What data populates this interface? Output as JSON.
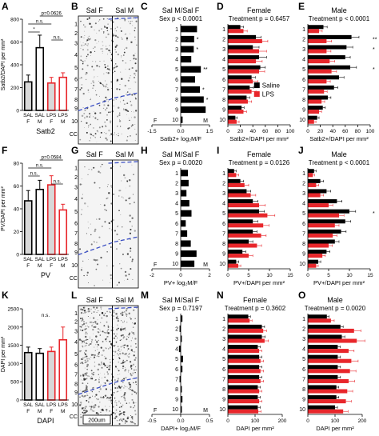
{
  "colors": {
    "saline": "#000000",
    "lps": "#e8262b",
    "f_bar": "#d8d8d8",
    "m_bar": "#ffffff"
  },
  "panel_letters": {
    "A": "A",
    "B": "B",
    "C": "C",
    "D": "D",
    "E": "E",
    "F": "F",
    "G": "G",
    "H": "H",
    "I": "I",
    "J": "J",
    "K": "K",
    "L": "L",
    "M": "M",
    "N": "N",
    "O": "O"
  },
  "legend": {
    "saline": "Saline",
    "lps": "LPS"
  },
  "images": [
    {
      "id": "B",
      "label_f": "Sal F",
      "label_m": "Sal M",
      "layers": [
        "1",
        "2",
        "3",
        "4",
        "5",
        "6",
        "7",
        "8",
        "9",
        "10",
        "CC"
      ]
    },
    {
      "id": "G",
      "label_f": "Sal F",
      "label_m": "Sal M",
      "layers": [
        "1",
        "2",
        "3",
        "4",
        "5",
        "6",
        "7",
        "8",
        "9",
        "10",
        "CC"
      ]
    },
    {
      "id": "L",
      "label_f": "Sal F",
      "label_m": "Sal M",
      "layers": [
        "1",
        "2",
        "3",
        "4",
        "5",
        "6",
        "7",
        "8",
        "9",
        "10",
        "CC"
      ],
      "scale": "200um"
    }
  ],
  "chart_data": [
    {
      "id": "A",
      "type": "bar",
      "ylabel": "Satb2/DAPI per mm²",
      "ylim": [
        0,
        800
      ],
      "yticks": [
        0,
        200,
        400,
        600,
        800
      ],
      "categories": [
        [
          "SAL",
          "F"
        ],
        [
          "SAL",
          "M"
        ],
        [
          "LPS",
          "F"
        ],
        [
          "LPS",
          "M"
        ]
      ],
      "values": [
        250,
        550,
        240,
        290
      ],
      "errors": [
        60,
        110,
        50,
        40
      ],
      "group_label": "Satb2",
      "sig": [
        {
          "text": "p=0.0626",
          "from": 1,
          "to": 3,
          "level": 0
        },
        {
          "text": "n.s.",
          "from": 0,
          "to": 2,
          "level": 1
        },
        {
          "text": "*",
          "from": 0,
          "to": 1,
          "level": 2
        },
        {
          "text": "n.s.",
          "from": 2,
          "to": 3,
          "level": 3
        }
      ]
    },
    {
      "id": "F",
      "type": "bar",
      "ylabel": "PV/DAPI per mm²",
      "ylim": [
        0,
        80
      ],
      "yticks": [
        0,
        20,
        40,
        60,
        80
      ],
      "categories": [
        [
          "SAL",
          "F"
        ],
        [
          "SAL",
          "M"
        ],
        [
          "LPS",
          "F"
        ],
        [
          "LPS",
          "M"
        ]
      ],
      "values": [
        47,
        57,
        61,
        39
      ],
      "errors": [
        9,
        8,
        8,
        5
      ],
      "group_label": "PV",
      "sig": [
        {
          "text": "p=0.0584",
          "from": 1,
          "to": 3,
          "level": 0
        },
        {
          "text": "n.s.",
          "from": 0,
          "to": 2,
          "level": 1
        },
        {
          "text": "n.s.",
          "from": 0,
          "to": 1,
          "level": 2
        },
        {
          "text": "n.s.",
          "from": 2,
          "to": 3,
          "level": 3
        }
      ]
    },
    {
      "id": "K",
      "type": "bar",
      "ylabel": "DAPI per mm²",
      "ylim": [
        0,
        2500
      ],
      "yticks": [
        0,
        500,
        1000,
        1500,
        2000,
        2500
      ],
      "categories": [
        [
          "SAL",
          "F"
        ],
        [
          "SAL",
          "M"
        ],
        [
          "LPS",
          "F"
        ],
        [
          "LPS",
          "M"
        ]
      ],
      "values": [
        1300,
        1280,
        1330,
        1650
      ],
      "errors": [
        150,
        130,
        120,
        350
      ],
      "group_label": "DAPI",
      "sig": [
        {
          "text": "n.s.",
          "from": 0,
          "to": 3,
          "level": -1
        }
      ]
    },
    {
      "id": "C",
      "type": "bar",
      "title": "Sal M/Sal F",
      "subtitle": "Sex p < 0.0001",
      "xlabel": "Satb2+ log₂M/F",
      "xlim": [
        -1.5,
        1.5
      ],
      "xticks": [
        "-1.5",
        "0.0",
        "1.5"
      ],
      "ends": [
        "F",
        "M"
      ],
      "categories": [
        "1",
        "2",
        "3",
        "4",
        "5",
        "6",
        "7",
        "8",
        "9",
        "10"
      ],
      "values": [
        0.85,
        0.7,
        0.68,
        0.55,
        1.05,
        0.75,
        1.0,
        1.2,
        1.3,
        0.1
      ],
      "stars": [
        "",
        "*",
        "*",
        "",
        "**",
        "",
        "*",
        "*",
        "",
        ""
      ]
    },
    {
      "id": "H",
      "type": "bar",
      "title": "Sal M/Sal F",
      "subtitle": "Sex p = 0.0020",
      "xlabel": "PV+ log₂M/F",
      "xlim": [
        -2,
        2
      ],
      "xticks": [
        "-2",
        "0",
        "2"
      ],
      "ends": [
        "F",
        "M"
      ],
      "categories": [
        "1",
        "2",
        "3",
        "4",
        "5",
        "6",
        "7",
        "8",
        "9",
        "10"
      ],
      "values": [
        0.5,
        0.55,
        0.4,
        0.6,
        0.75,
        0.35,
        0.45,
        0.7,
        1.1,
        0.95
      ],
      "stars": []
    },
    {
      "id": "M",
      "type": "bar",
      "title": "Sal M/Sal F",
      "subtitle": "Sex p = 0.7197",
      "xlabel": "DAPI+ log₂M/F",
      "xlim": [
        -0.5,
        0.5
      ],
      "xticks": [
        "-0.5",
        "0.0",
        "0.5"
      ],
      "ends": [
        "F",
        "M"
      ],
      "categories": [
        "1",
        "2",
        "3",
        "4",
        "5",
        "6",
        "7",
        "8",
        "9",
        "10"
      ],
      "values": [
        0.03,
        -0.02,
        0.02,
        -0.03,
        0.04,
        0.03,
        -0.02,
        0.02,
        0.03,
        0.02
      ],
      "stars": []
    },
    {
      "id": "D",
      "type": "bar",
      "title": "Female",
      "subtitle": "Treatment p = 0.6457",
      "xlabel": "Satb2+/DAPI per mm²",
      "xlim": [
        0,
        100
      ],
      "xticks": [
        "0",
        "20",
        "40",
        "60",
        "80",
        "100"
      ],
      "categories": [
        "1",
        "2",
        "3",
        "4",
        "5",
        "6",
        "7",
        "8",
        "9",
        "10"
      ],
      "series": [
        {
          "name": "Saline",
          "values": [
            20,
            45,
            40,
            50,
            52,
            38,
            35,
            30,
            22,
            12
          ],
          "errors": [
            5,
            8,
            10,
            12,
            8,
            6,
            6,
            5,
            4,
            3
          ]
        },
        {
          "name": "LPS",
          "values": [
            25,
            55,
            50,
            45,
            50,
            40,
            38,
            32,
            25,
            14
          ],
          "errors": [
            6,
            9,
            12,
            10,
            9,
            8,
            7,
            6,
            5,
            4
          ]
        }
      ],
      "stars": [],
      "legend": true
    },
    {
      "id": "E",
      "type": "bar",
      "title": "Male",
      "subtitle": "Treatment p < 0.0001",
      "xlabel": "Satb2+/DAPI per mm²",
      "xlim": [
        0,
        100
      ],
      "xticks": [
        "0",
        "20",
        "40",
        "60",
        "80",
        "100"
      ],
      "categories": [
        "1",
        "2",
        "3",
        "4",
        "5",
        "6",
        "7",
        "8",
        "9",
        "10"
      ],
      "series": [
        {
          "name": "Saline",
          "values": [
            25,
            70,
            62,
            60,
            68,
            50,
            42,
            32,
            24,
            15
          ],
          "errors": [
            6,
            12,
            10,
            8,
            10,
            8,
            6,
            5,
            4,
            3
          ]
        },
        {
          "name": "LPS",
          "values": [
            18,
            30,
            30,
            35,
            38,
            30,
            26,
            22,
            18,
            10
          ],
          "errors": [
            5,
            8,
            7,
            8,
            8,
            6,
            5,
            5,
            4,
            3
          ]
        }
      ],
      "stars": [
        "",
        "**",
        "*",
        "",
        "*",
        "",
        "",
        "",
        "",
        ""
      ]
    },
    {
      "id": "I",
      "type": "bar",
      "title": "Female",
      "subtitle": "Treatment p = 0.0126",
      "xlabel": "PV+/DAPI per mm²",
      "xlim": [
        0,
        15
      ],
      "xticks": [
        "0",
        "5",
        "10",
        "15"
      ],
      "categories": [
        "1",
        "2",
        "3",
        "4",
        "5",
        "6",
        "7",
        "8",
        "9",
        "10"
      ],
      "series": [
        {
          "name": "Saline",
          "values": [
            1.5,
            3,
            4.5,
            6,
            7.5,
            6,
            6,
            5,
            3.5,
            2
          ],
          "errors": [
            0.5,
            0.8,
            1,
            1.2,
            1.3,
            1.2,
            1,
            1,
            0.8,
            0.6
          ]
        },
        {
          "name": "LPS",
          "values": [
            2,
            4,
            5.5,
            7.5,
            9.5,
            8.5,
            8,
            7,
            5,
            2.5
          ],
          "errors": [
            0.6,
            1,
            1.2,
            1.5,
            1.8,
            1.4,
            1.2,
            1.1,
            1,
            0.6
          ]
        }
      ],
      "stars": []
    },
    {
      "id": "J",
      "type": "bar",
      "title": "Male",
      "subtitle": "Treatment p < 0.0001",
      "xlabel": "PV+/DAPI per mm²",
      "xlim": [
        0,
        15
      ],
      "xticks": [
        "0",
        "5",
        "10",
        "15"
      ],
      "categories": [
        "1",
        "2",
        "3",
        "4",
        "5",
        "6",
        "7",
        "8",
        "9",
        "10"
      ],
      "series": [
        {
          "name": "Saline",
          "values": [
            1.5,
            3,
            4.5,
            7,
            10,
            9,
            8,
            6.5,
            4.5,
            2.5
          ],
          "errors": [
            0.5,
            0.8,
            1,
            1.2,
            1.5,
            1.3,
            1.2,
            1,
            0.8,
            0.6
          ]
        },
        {
          "name": "LPS",
          "values": [
            1.2,
            2,
            3,
            5,
            7.5,
            6.5,
            6,
            5,
            3.5,
            2
          ],
          "errors": [
            0.4,
            0.6,
            0.8,
            1,
            1.2,
            1,
            1,
            0.9,
            0.7,
            0.5
          ]
        }
      ],
      "stars": [
        "",
        "",
        "",
        "",
        "*",
        "",
        "",
        "",
        "",
        ""
      ]
    },
    {
      "id": "N",
      "type": "bar",
      "title": "Female",
      "subtitle": "Treatment p = 0.3602",
      "xlabel": "DAPI per mm²",
      "xlim": [
        0,
        200
      ],
      "xticks": [
        "0",
        "100",
        "200"
      ],
      "categories": [
        "1",
        "2",
        "3",
        "4",
        "5",
        "6",
        "7",
        "8",
        "9",
        "10"
      ],
      "series": [
        {
          "name": "Saline",
          "values": [
            75,
            125,
            125,
            110,
            115,
            115,
            115,
            110,
            110,
            110
          ],
          "errors": [
            8,
            10,
            12,
            9,
            10,
            10,
            10,
            9,
            9,
            9
          ]
        },
        {
          "name": "LPS",
          "values": [
            80,
            130,
            135,
            115,
            120,
            120,
            120,
            115,
            115,
            112
          ],
          "errors": [
            9,
            12,
            14,
            10,
            11,
            11,
            11,
            10,
            10,
            10
          ]
        }
      ],
      "stars": []
    },
    {
      "id": "O",
      "type": "bar",
      "title": "Male",
      "subtitle": "Treatment p = 0.0020",
      "xlabel": "DAPI per mm²",
      "xlim": [
        0,
        200
      ],
      "xticks": [
        "0",
        "100",
        "200"
      ],
      "categories": [
        "1",
        "2",
        "3",
        "4",
        "5",
        "6",
        "7",
        "8",
        "9",
        "10"
      ],
      "series": [
        {
          "name": "Saline",
          "values": [
            70,
            120,
            125,
            110,
            110,
            110,
            110,
            105,
            105,
            100
          ],
          "errors": [
            8,
            10,
            11,
            9,
            10,
            10,
            10,
            9,
            9,
            9
          ]
        },
        {
          "name": "LPS",
          "values": [
            85,
            170,
            180,
            150,
            160,
            155,
            150,
            145,
            140,
            130
          ],
          "errors": [
            12,
            25,
            30,
            20,
            25,
            22,
            22,
            20,
            20,
            18
          ]
        }
      ],
      "stars": []
    }
  ]
}
